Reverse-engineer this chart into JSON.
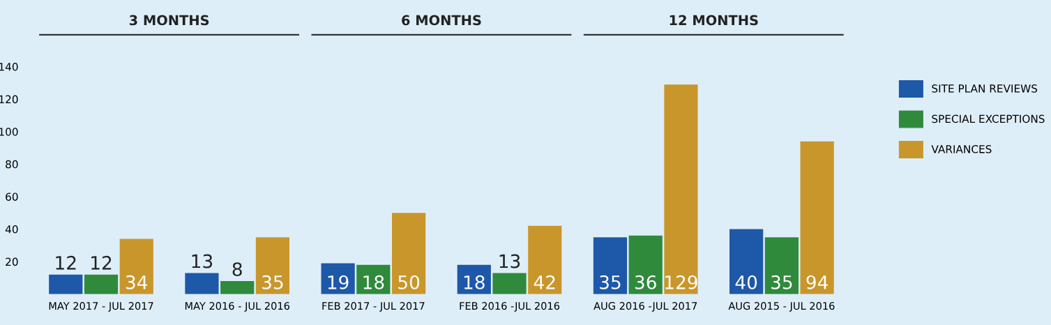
{
  "chart_data": {
    "type": "bar",
    "categories": [
      "MAY 2017 - JUL 2017",
      "MAY 2016 - JUL 2016",
      "FEB 2017 - JUL 2017",
      "FEB 2016 -JUL 2016",
      "AUG 2016 -JUL 2017",
      "AUG 2015 - JUL 2016"
    ],
    "series": [
      {
        "name": "SITE PLAN REVIEWS",
        "color": "#1e58a8",
        "values": [
          12,
          13,
          19,
          18,
          35,
          40
        ]
      },
      {
        "name": "SPECIAL EXCEPTIONS",
        "color": "#2f8a3c",
        "values": [
          12,
          8,
          18,
          13,
          36,
          35
        ]
      },
      {
        "name": "VARIANCES",
        "color": "#c9962c",
        "values": [
          34,
          35,
          50,
          42,
          129,
          94
        ]
      }
    ],
    "annotations": [
      "3 MONTHS",
      "6 MONTHS",
      "12 MONTHS"
    ],
    "ylim": [
      0,
      140
    ],
    "yticks": [
      20,
      40,
      60,
      80,
      100,
      120,
      140
    ],
    "data_labels": true,
    "legend": "right",
    "grid": false
  }
}
